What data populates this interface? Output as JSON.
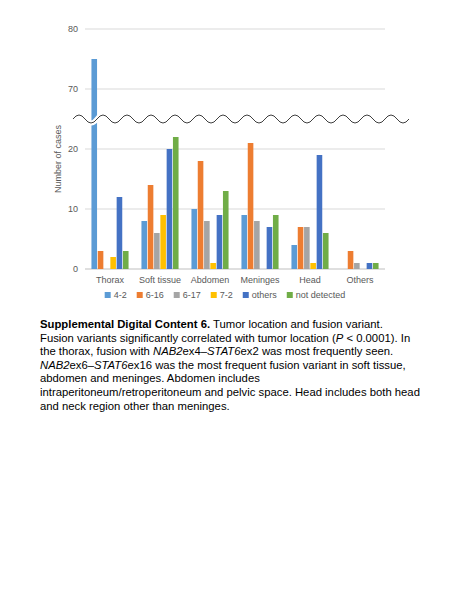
{
  "chart_data": {
    "type": "bar",
    "categories": [
      "Thorax",
      "Soft tissue",
      "Abdomen",
      "Meninges",
      "Head",
      "Others"
    ],
    "series": [
      {
        "name": "4-2",
        "color": "#5b9bd5",
        "values": [
          75,
          8,
          10,
          9,
          4,
          0
        ]
      },
      {
        "name": "6-16",
        "color": "#ed7d31",
        "values": [
          3,
          14,
          18,
          21,
          7,
          3
        ]
      },
      {
        "name": "6-17",
        "color": "#a5a5a5",
        "values": [
          0,
          6,
          8,
          8,
          7,
          1
        ]
      },
      {
        "name": "7-2",
        "color": "#ffc000",
        "values": [
          2,
          9,
          1,
          0,
          1,
          0
        ]
      },
      {
        "name": "others",
        "color": "#4472c4",
        "values": [
          12,
          20,
          9,
          7,
          19,
          1
        ]
      },
      {
        "name": "not detected",
        "color": "#70ad47",
        "values": [
          3,
          22,
          13,
          9,
          6,
          1
        ]
      }
    ],
    "y_label": "Number of cases",
    "ylim": [
      0,
      80
    ],
    "yticks": [
      0,
      10,
      20,
      70,
      80
    ],
    "grid": true,
    "legend": "bottom"
  },
  "caption": {
    "title": "Supplemental Digital Content 6.",
    "subtitle": "Tumor location and fusion variant.",
    "body": [
      {
        "text": "Fusion variants significantly correlated with tumor location (",
        "italic": false
      },
      {
        "text": "P",
        "italic": true
      },
      {
        "text": " < 0.0001). In the thorax, fusion with ",
        "italic": false
      },
      {
        "text": "NAB2",
        "italic": true
      },
      {
        "text": "ex4–",
        "italic": false
      },
      {
        "text": "STAT6",
        "italic": true
      },
      {
        "text": "ex2 was most frequently seen. ",
        "italic": false
      },
      {
        "text": "NAB2",
        "italic": true
      },
      {
        "text": "ex6–",
        "italic": false
      },
      {
        "text": "STAT6",
        "italic": true
      },
      {
        "text": "ex16 was the most frequent fusion variant in soft tissue, abdomen and meninges. Abdomen includes intraperitoneum/retroperitoneum and pelvic space. Head includes both head and neck region other than meninges.",
        "italic": false
      }
    ]
  }
}
